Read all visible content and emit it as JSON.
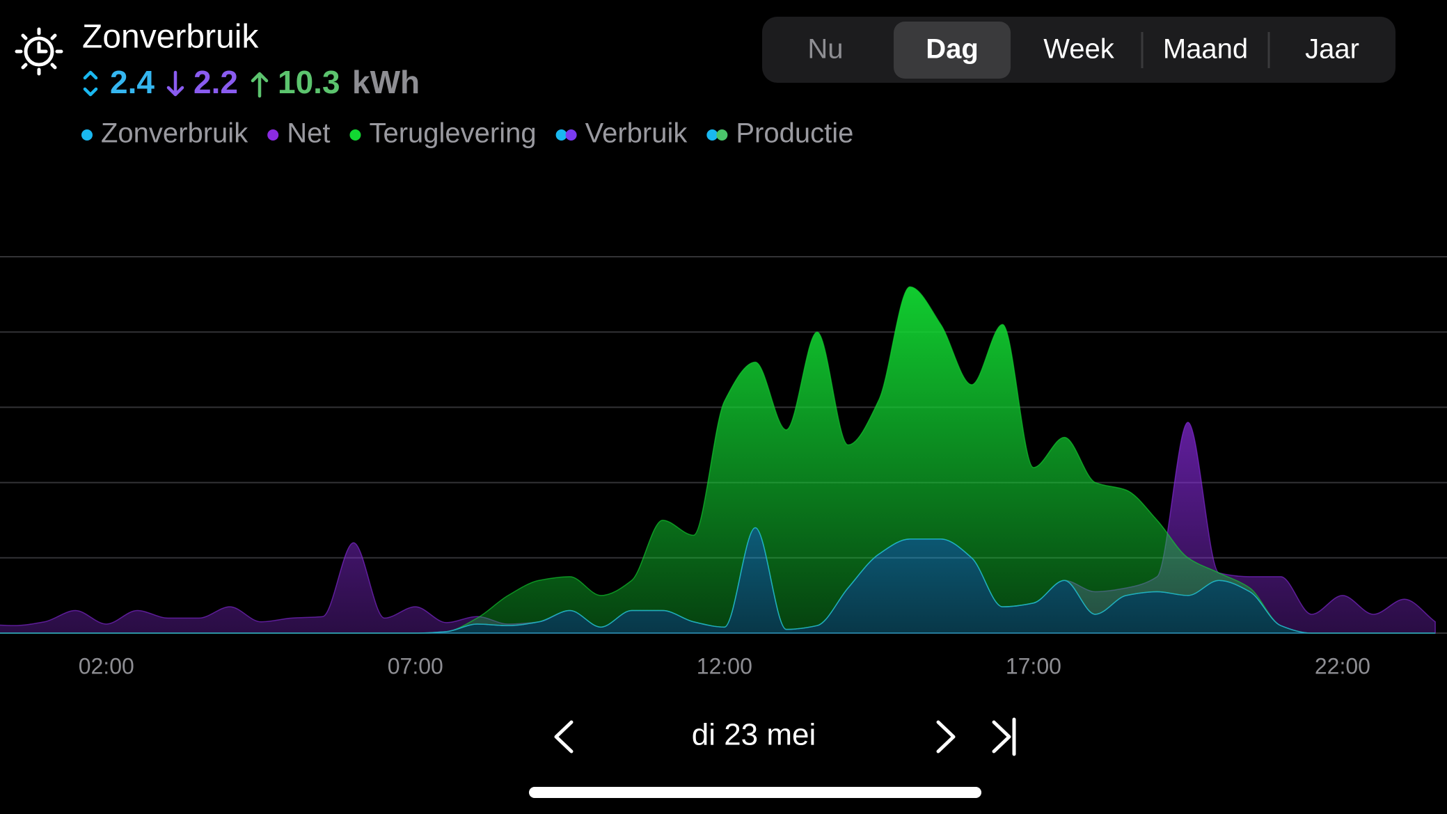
{
  "header": {
    "title": "Zonverbruik",
    "summary": {
      "self": 2.4,
      "net": 2.2,
      "return": 10.3,
      "unit": "kWh"
    }
  },
  "tabs": [
    "Nu",
    "Dag",
    "Week",
    "Maand",
    "Jaar"
  ],
  "selected_tab": "Dag",
  "disabled_tab": "Nu",
  "date": "di 23 mei",
  "chart_data": {
    "type": "area",
    "x": [
      0,
      0.5,
      1,
      1.5,
      2,
      2.5,
      3,
      3.5,
      4,
      4.5,
      5,
      5.5,
      6,
      6.5,
      7,
      7.5,
      8,
      8.5,
      9,
      9.5,
      10,
      10.5,
      11,
      11.5,
      12,
      12.5,
      13,
      13.5,
      14,
      14.5,
      15,
      15.5,
      16,
      16.5,
      17,
      17.5,
      18,
      18.5,
      19,
      19.5,
      20,
      20.5,
      21,
      21.5,
      22,
      22.5,
      23,
      23.5
    ],
    "series": [
      {
        "name": "Zonverbruik",
        "color": "#1ab8f0",
        "values": [
          0,
          0,
          0,
          0,
          0,
          0,
          0,
          0,
          0,
          0,
          0,
          0,
          0,
          0,
          0,
          0.02,
          0.12,
          0.1,
          0.15,
          0.3,
          0.08,
          0.3,
          0.3,
          0.15,
          0.08,
          1.4,
          0.05,
          0.1,
          0.6,
          1.05,
          1.25,
          1.25,
          1.0,
          0.35,
          0.4,
          0.7,
          0.25,
          0.5,
          0.55,
          0.5,
          0.7,
          0.55,
          0.1,
          0,
          0,
          0,
          0,
          0
        ]
      },
      {
        "name": "Net",
        "color": "#8b2be2",
        "values": [
          0.12,
          0.1,
          0.15,
          0.3,
          0.12,
          0.3,
          0.2,
          0.2,
          0.35,
          0.15,
          0.2,
          0.22,
          1.2,
          0.2,
          0.35,
          0.12,
          0.1,
          0.02,
          0,
          0,
          0,
          0,
          0,
          0,
          0,
          0,
          0,
          0,
          0,
          0,
          0,
          0,
          0,
          0,
          0,
          0,
          0.3,
          0.1,
          0.2,
          2.3,
          0.1,
          0.2,
          0.65,
          0.25,
          0.5,
          0.25,
          0.45,
          0.15
        ]
      },
      {
        "name": "Teruglevering",
        "color": "#12d832",
        "values": [
          0,
          0,
          0,
          0,
          0,
          0,
          0,
          0,
          0,
          0,
          0,
          0,
          0,
          0,
          0,
          0,
          0.08,
          0.4,
          0.55,
          0.45,
          0.42,
          0.4,
          1.2,
          1.15,
          3.0,
          2.2,
          2.65,
          3.9,
          1.9,
          2.05,
          3.35,
          2.85,
          2.3,
          3.75,
          1.8,
          1.9,
          1.75,
          1.4,
          0.95,
          0.5,
          0.1,
          0.05,
          0,
          0,
          0,
          0,
          0,
          0
        ]
      }
    ],
    "combined_legend": [
      {
        "name": "Verbruik",
        "colors": [
          "#1ab8f0",
          "#7b3cf0"
        ]
      },
      {
        "name": "Productie",
        "colors": [
          "#1ab8f0",
          "#4bc46a"
        ]
      }
    ],
    "xlim": [
      0.28,
      23.69
    ],
    "xticks": [
      {
        "value": 2,
        "label": "02:00"
      },
      {
        "value": 7,
        "label": "07:00"
      },
      {
        "value": 12,
        "label": "12:00"
      },
      {
        "value": 17,
        "label": "17:00"
      },
      {
        "value": 22,
        "label": "22:00"
      }
    ],
    "ylim": [
      0,
      5
    ],
    "yticks": [
      1,
      2,
      3,
      4,
      5
    ],
    "grid": true,
    "stacked": true
  }
}
